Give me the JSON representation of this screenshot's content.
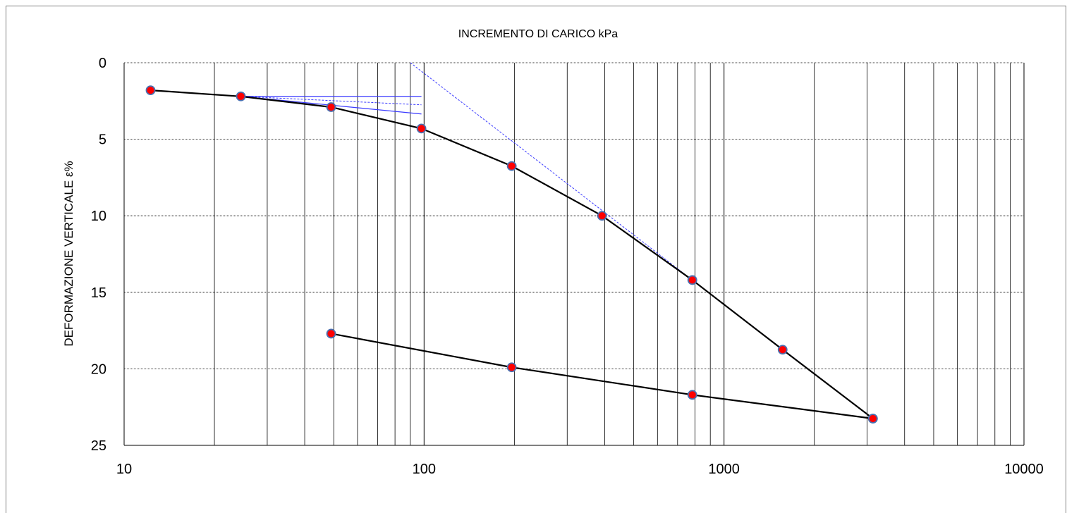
{
  "chart_data": {
    "type": "line",
    "title": "INCREMENTO DI CARICO  kPa",
    "xlabel": "",
    "ylabel": "DEFORMAZIONE VERTICALE  ε%",
    "xscale": "log",
    "xlim": [
      10,
      10000
    ],
    "ylim": [
      0,
      25
    ],
    "y_inverted": true,
    "grid": true,
    "x_ticks": [
      "10",
      "100",
      "1000",
      "10000"
    ],
    "y_ticks": [
      "0",
      "5",
      "10",
      "15",
      "20",
      "25"
    ],
    "series": [
      {
        "x": [
          12.25,
          24.5,
          49,
          98,
          196,
          392,
          784,
          1568,
          3136
        ],
        "y": [
          1.8,
          2.2,
          2.9,
          4.3,
          6.75,
          10.0,
          14.2,
          18.75,
          23.25
        ],
        "marker": "circle",
        "color": "#000000",
        "marker_color": "#ff0000"
      },
      {
        "x": [
          49,
          196,
          784,
          3136
        ],
        "y": [
          17.7,
          19.9,
          21.7,
          23.25
        ],
        "marker": "circle",
        "color": "#000000",
        "marker_color": "#ff0000"
      }
    ],
    "construction_lines": [
      {
        "x": [
          24.5,
          98
        ],
        "y": [
          2.2,
          2.2
        ],
        "style": "solid",
        "color": "#3a3aff"
      },
      {
        "x": [
          24.5,
          98
        ],
        "y": [
          2.2,
          2.75
        ],
        "style": "dashed",
        "color": "#3a3aff"
      },
      {
        "x": [
          24.5,
          98
        ],
        "y": [
          2.2,
          3.35
        ],
        "style": "solid",
        "color": "#3a3aff"
      },
      {
        "x": [
          90,
          784
        ],
        "y": [
          0,
          14.2
        ],
        "style": "dashed",
        "color": "#3a3aff"
      },
      {
        "x": [
          784,
          3136
        ],
        "y": [
          14.2,
          23.25
        ],
        "style": "solid",
        "color": "#1a1a80"
      }
    ]
  }
}
